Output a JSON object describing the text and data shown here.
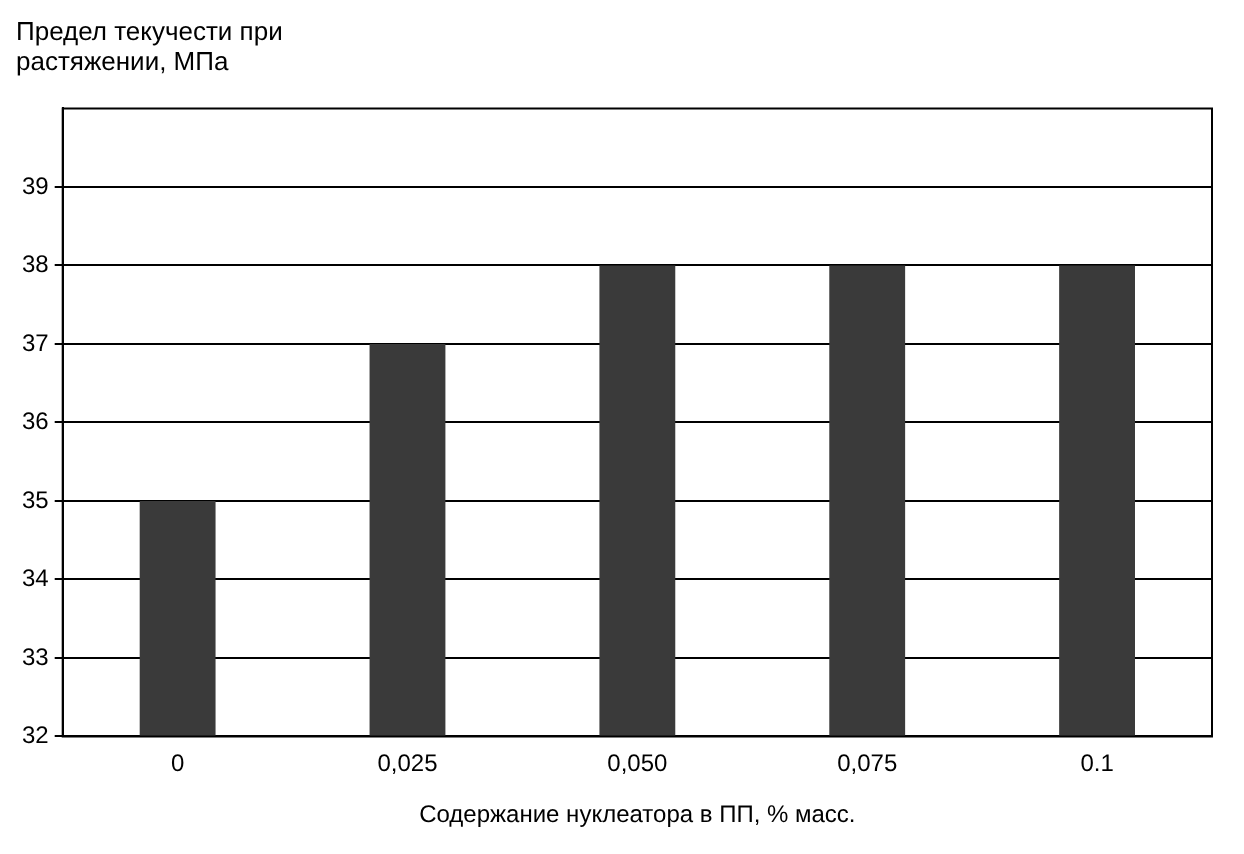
{
  "chart_data": {
    "type": "bar",
    "ylabel": "Предел текучести при растяжении, МПа",
    "xlabel": "Содержание нуклеатора в ПП, % масс.",
    "categories": [
      "0",
      "0,025",
      "0,050",
      "0,075",
      "0.1"
    ],
    "values": [
      35,
      37,
      38,
      38,
      38
    ],
    "color": "#3a3a3a",
    "ylim": [
      32,
      40
    ],
    "yticks": [
      32,
      33,
      34,
      35,
      36,
      37,
      38,
      39
    ],
    "grid": "y",
    "legend": false
  }
}
